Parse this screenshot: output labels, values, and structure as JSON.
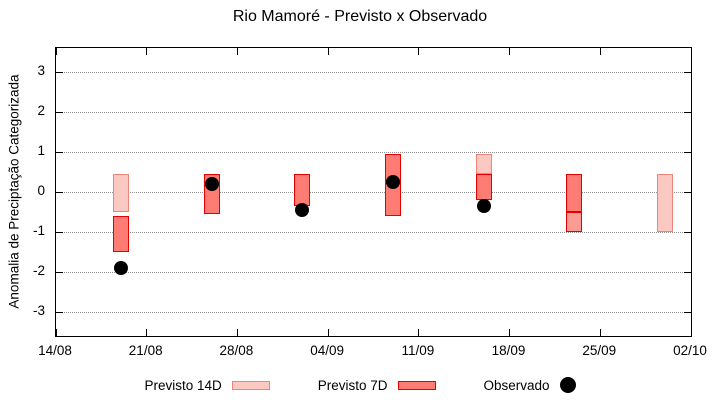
{
  "title": "Rio Mamoré - Previsto x Observado",
  "chart_data": {
    "type": "bar",
    "subtype": "forecast-range-boxes-with-observed-dots",
    "title": "Rio Mamoré - Previsto x Observado",
    "xlabel": "",
    "ylabel": "Anomalia de Preciptação Categorizada",
    "ylim": [
      -3.6,
      3.6
    ],
    "yticks": [
      3,
      2,
      1,
      0,
      -1,
      -2,
      -3
    ],
    "grid": "horizontal dotted lines at integer y values",
    "x_span_days": 49,
    "xticks": [
      {
        "day": 0,
        "label": "14/08"
      },
      {
        "day": 7,
        "label": "21/08"
      },
      {
        "day": 14,
        "label": "28/08"
      },
      {
        "day": 21,
        "label": "04/09"
      },
      {
        "day": 28,
        "label": "11/09"
      },
      {
        "day": 35,
        "label": "18/09"
      },
      {
        "day": 42,
        "label": "25/09"
      },
      {
        "day": 49,
        "label": "02/10"
      }
    ],
    "groups": [
      {
        "day": 5,
        "segments": [
          {
            "series": "previsto14",
            "from": -0.5,
            "to": 0.45
          },
          {
            "series": "previsto7",
            "from": -1.5,
            "to": -0.6
          }
        ],
        "observed": -1.9
      },
      {
        "day": 12,
        "segments": [
          {
            "series": "previsto7",
            "from": -0.55,
            "to": 0.45
          }
        ],
        "observed": 0.2
      },
      {
        "day": 19,
        "segments": [
          {
            "series": "previsto7",
            "from": -0.35,
            "to": 0.45
          }
        ],
        "observed": -0.45
      },
      {
        "day": 26,
        "segments": [
          {
            "series": "previsto7",
            "from": -0.6,
            "to": 0.95
          }
        ],
        "observed": 0.25
      },
      {
        "day": 33,
        "segments": [
          {
            "series": "previsto14",
            "from": 0.45,
            "to": 0.95
          },
          {
            "series": "previsto7",
            "from": -0.2,
            "to": 0.45
          }
        ],
        "observed": -0.35
      },
      {
        "day": 40,
        "segments": [
          {
            "series": "previsto7",
            "from": -0.5,
            "to": 0.45
          },
          {
            "series": "overlap",
            "from": -1.0,
            "to": -0.5
          }
        ],
        "observed": null
      },
      {
        "day": 47,
        "segments": [
          {
            "series": "previsto14",
            "from": -1.0,
            "to": 0.45
          }
        ],
        "observed": null
      }
    ],
    "legend": [
      {
        "label": "Previsto 14D",
        "swatch": "box-light"
      },
      {
        "label": "Previsto 7D",
        "swatch": "box-dark"
      },
      {
        "label": "Observado",
        "swatch": "dot"
      }
    ]
  },
  "colors": {
    "previsto14_fill": "#fbc8c2",
    "previsto14_border": "#ee8377",
    "previsto7_fill": "#fd7d75",
    "previsto7_border": "#e60000",
    "overlap_fill": "#fc9b94",
    "overlap_border": "#e60000",
    "observed_dot": "#000000",
    "grid": "#909090",
    "axis": "#000000"
  }
}
